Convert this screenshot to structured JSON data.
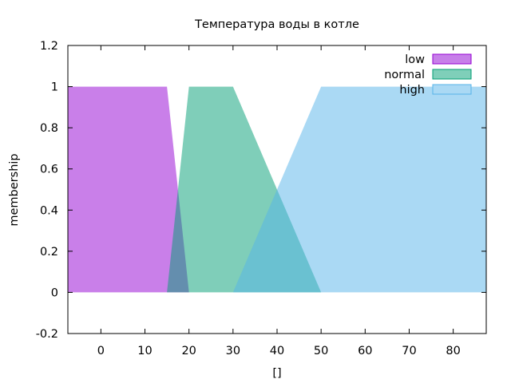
{
  "chart_data": {
    "type": "area",
    "title": "Температура воды в котле",
    "xlabel": "[]",
    "ylabel": "membership",
    "xlim": [
      -7.5,
      87.5
    ],
    "ylim": [
      -0.2,
      1.2
    ],
    "xticks": [
      0,
      10,
      20,
      30,
      40,
      50,
      60,
      70,
      80
    ],
    "yticks": [
      -0.2,
      0,
      0.2,
      0.4,
      0.6,
      0.8,
      1,
      1.2
    ],
    "ytick_labels": [
      "-0.2",
      "0",
      "0.2",
      "0.4",
      "0.6",
      "0.8",
      "1",
      "1.2"
    ],
    "grid": false,
    "legend_position": "top-right",
    "series": [
      {
        "name": "low",
        "color": "#9400d3",
        "fill_color": "#c77fe9",
        "opacity": 0.5,
        "points": [
          [
            -7.5,
            0
          ],
          [
            -7.5,
            1
          ],
          [
            15,
            1
          ],
          [
            20,
            0
          ]
        ]
      },
      {
        "name": "normal",
        "color": "#009e73",
        "fill_color": "#7fcfb9",
        "opacity": 0.5,
        "points": [
          [
            15,
            0
          ],
          [
            20,
            1
          ],
          [
            30,
            1
          ],
          [
            50,
            0
          ]
        ]
      },
      {
        "name": "high",
        "color": "#56b4e9",
        "fill_color": "#aad9f4",
        "opacity": 0.5,
        "points": [
          [
            30,
            0
          ],
          [
            50,
            1
          ],
          [
            87.5,
            1
          ],
          [
            87.5,
            0
          ]
        ]
      }
    ]
  }
}
